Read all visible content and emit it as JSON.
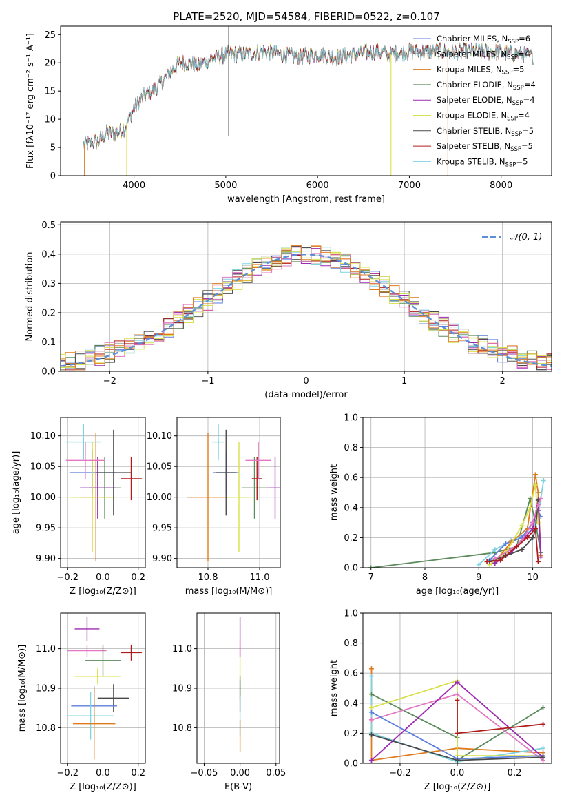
{
  "figure": {
    "title": "PLATE=2520, MJD=54584, FIBERID=0522, z=0.107"
  },
  "chart_data": [
    {
      "id": "spectrum",
      "type": "line",
      "xlabel": "wavelength [Angstrom, rest frame]",
      "ylabel": "Flux [fλ10⁻¹⁷ erg cm⁻² s⁻¹ A⁻¹]",
      "xlim": [
        3200,
        8550
      ],
      "ylim": [
        0,
        26.5
      ],
      "xticks": [
        4000,
        5000,
        6000,
        7000,
        8000
      ],
      "yticks": [
        0,
        5,
        10,
        15,
        20,
        25
      ],
      "grid": false,
      "legend_position": "top-right",
      "continuum": {
        "x": [
          3450,
          3600,
          3700,
          3800,
          3900,
          4000,
          4100,
          4200,
          4300,
          4400,
          4500,
          4600,
          4700,
          4800,
          4900,
          5000,
          5100,
          5200,
          5400,
          5600,
          5800,
          6000,
          6200,
          6400,
          6600,
          6800,
          7000,
          7200,
          7400,
          7600,
          7800,
          8000,
          8200,
          8350
        ],
        "y": [
          5.5,
          6.0,
          7.5,
          7.5,
          8.5,
          12.0,
          14.0,
          15.0,
          16.5,
          18.5,
          20.0,
          20.0,
          19.5,
          20.5,
          21.0,
          21.5,
          21.5,
          21.5,
          22.0,
          21.5,
          21.0,
          21.5,
          21.0,
          21.5,
          22.0,
          21.5,
          22.0,
          22.0,
          22.0,
          22.0,
          22.0,
          21.8,
          21.5,
          21.2
        ]
      },
      "series": [
        {
          "name": "Chabrier MILES, N_SSP=6",
          "color": "#5c7fdc"
        },
        {
          "name": "Salpeter MILES, N_SSP=4",
          "color": "#595959"
        },
        {
          "name": "Kroupa MILES, N_SSP=5",
          "color": "#e07a1f"
        },
        {
          "name": "Chabrier ELODIE, N_SSP=4",
          "color": "#5b8a5b"
        },
        {
          "name": "Salpeter ELODIE, N_SSP=4",
          "color": "#9b2bb0"
        },
        {
          "name": "Kroupa ELODIE, N_SSP=4",
          "color": "#d8e04a"
        },
        {
          "name": "Chabrier STELIB, N_SSP=5",
          "color": "#4a4a4a"
        },
        {
          "name": "Salpeter STELIB, N_SSP=5",
          "color": "#b01c1c"
        },
        {
          "name": "Kroupa STELIB, N_SSP=5",
          "color": "#7dd3e0"
        }
      ],
      "edge_drops": [
        {
          "color": "#e07a1f",
          "x": 3460
        },
        {
          "color": "#d8e04a",
          "x": 3920
        },
        {
          "color": "#d8e04a",
          "x": 6800
        },
        {
          "color": "#e07a1f",
          "x": 7420
        }
      ],
      "spike": {
        "x": 5030,
        "y_from": 7,
        "y_to": 26.5
      }
    },
    {
      "id": "residuals",
      "type": "line",
      "xlabel": "(data-model)/error",
      "ylabel": "Normed distribution",
      "xlim": [
        -2.5,
        2.5
      ],
      "ylim": [
        0,
        0.51
      ],
      "xticks": [
        -2,
        -1,
        0,
        1,
        2
      ],
      "yticks": [
        0.0,
        0.1,
        0.2,
        0.3,
        0.4,
        0.5
      ],
      "grid": true,
      "legend": "𝒩(0, 1)",
      "legend_position": "top-right",
      "bin_width": 0.1,
      "normal_curve_color": "#5b8fd6"
    },
    {
      "id": "age-vs-Z",
      "type": "scatter",
      "xlabel": "Z [log₁₀(Z/Z⊙)]",
      "ylabel": "age  [log₁₀(age/yr)]",
      "xlim": [
        -0.24,
        0.24
      ],
      "ylim": [
        9.885,
        10.13
      ],
      "xticks": [
        -0.2,
        0.0,
        0.2
      ],
      "yticks": [
        9.9,
        9.95,
        10.0,
        10.05,
        10.1
      ],
      "grid": true,
      "points": [
        {
          "color": "#5c7fdc",
          "x": -0.06,
          "xerr": 0.13,
          "y": 10.04,
          "yerr": 0.035
        },
        {
          "color": "#e07a1f",
          "x": -0.04,
          "xerr": 0.09,
          "y": 10.0,
          "yerr": 0.105
        },
        {
          "color": "#5b8a5b",
          "x": 0.01,
          "xerr": 0.09,
          "y": 10.015,
          "yerr": 0.05
        },
        {
          "color": "#9b2bb0",
          "x": -0.03,
          "xerr": 0.1,
          "y": 10.015,
          "yerr": 0.05
        },
        {
          "color": "#d8e04a",
          "x": -0.06,
          "xerr": 0.13,
          "y": 10.0,
          "yerr": 0.09
        },
        {
          "color": "#4a4a4a",
          "x": 0.06,
          "xerr": 0.1,
          "y": 10.04,
          "yerr": 0.07
        },
        {
          "color": "#b01c1c",
          "x": 0.16,
          "xerr": 0.06,
          "y": 10.03,
          "yerr": 0.035
        },
        {
          "color": "#e377c2",
          "x": -0.1,
          "xerr": 0.11,
          "y": 10.06,
          "yerr": 0.03
        },
        {
          "color": "#7dd3e0",
          "x": -0.11,
          "xerr": 0.1,
          "y": 10.09,
          "yerr": 0.03
        }
      ]
    },
    {
      "id": "age-vs-mass",
      "type": "scatter",
      "xlabel": "mass [log₁₀(M/M⊙)]",
      "ylabel": "",
      "xlim": [
        10.68,
        11.08
      ],
      "ylim": [
        9.885,
        10.13
      ],
      "xticks": [
        10.8,
        11.0
      ],
      "yticks": [
        9.9,
        9.95,
        10.0,
        10.05,
        10.1
      ],
      "grid": true,
      "points": [
        {
          "color": "#5c7fdc",
          "x": 10.87,
          "xerr": 0.05,
          "y": 10.04,
          "yerr": 0.035
        },
        {
          "color": "#e07a1f",
          "x": 10.8,
          "xerr": 0.08,
          "y": 10.0,
          "yerr": 0.105
        },
        {
          "color": "#5b8a5b",
          "x": 10.98,
          "xerr": 0.05,
          "y": 10.015,
          "yerr": 0.05
        },
        {
          "color": "#9b2bb0",
          "x": 11.06,
          "xerr": 0.03,
          "y": 10.015,
          "yerr": 0.05
        },
        {
          "color": "#d8e04a",
          "x": 10.92,
          "xerr": 0.05,
          "y": 10.0,
          "yerr": 0.09
        },
        {
          "color": "#4a4a4a",
          "x": 10.87,
          "xerr": 0.04,
          "y": 10.04,
          "yerr": 0.07
        },
        {
          "color": "#b01c1c",
          "x": 10.99,
          "xerr": 0.02,
          "y": 10.03,
          "yerr": 0.035
        },
        {
          "color": "#e377c2",
          "x": 10.995,
          "xerr": 0.05,
          "y": 10.06,
          "yerr": 0.03
        },
        {
          "color": "#7dd3e0",
          "x": 10.84,
          "xerr": 0.025,
          "y": 10.09,
          "yerr": 0.03
        }
      ]
    },
    {
      "id": "mass-weight-vs-age",
      "type": "line",
      "xlabel": "age  [log₁₀(age/yr)]",
      "ylabel": "mass weight",
      "xlim": [
        6.85,
        10.35
      ],
      "ylim": [
        0,
        1
      ],
      "xticks": [
        7,
        8,
        9,
        10
      ],
      "yticks": [
        0.0,
        0.2,
        0.4,
        0.6,
        0.8,
        1.0
      ],
      "grid": true,
      "series": [
        {
          "color": "#5b8a5b",
          "x": [
            7.0,
            9.3,
            9.7,
            9.95,
            10.05,
            10.15
          ],
          "y": [
            0.0,
            0.1,
            0.14,
            0.46,
            0.3,
            0.1
          ]
        },
        {
          "color": "#7dd3e0",
          "x": [
            9.0,
            9.3,
            9.6,
            10.0,
            10.1,
            10.2
          ],
          "y": [
            0.02,
            0.12,
            0.18,
            0.25,
            0.35,
            0.58
          ]
        },
        {
          "color": "#5c7fdc",
          "x": [
            9.2,
            9.5,
            9.8,
            10.0,
            10.1,
            10.15
          ],
          "y": [
            0.05,
            0.16,
            0.2,
            0.3,
            0.38,
            0.34
          ]
        },
        {
          "color": "#e07a1f",
          "x": [
            9.3,
            9.6,
            9.9,
            10.05,
            10.1,
            10.15
          ],
          "y": [
            0.04,
            0.17,
            0.26,
            0.62,
            0.5,
            0.08
          ]
        },
        {
          "color": "#d8e04a",
          "x": [
            9.2,
            9.5,
            9.8,
            9.95,
            10.05,
            10.1
          ],
          "y": [
            0.02,
            0.1,
            0.28,
            0.4,
            0.55,
            0.3
          ]
        },
        {
          "color": "#9b2bb0",
          "x": [
            9.3,
            9.6,
            9.85,
            10.0,
            10.1,
            10.15
          ],
          "y": [
            0.03,
            0.1,
            0.2,
            0.26,
            0.45,
            0.07
          ]
        },
        {
          "color": "#4a4a4a",
          "x": [
            9.2,
            9.5,
            9.8,
            10.0,
            10.05,
            10.1
          ],
          "y": [
            0.04,
            0.08,
            0.12,
            0.2,
            0.25,
            0.45
          ]
        },
        {
          "color": "#e377c2",
          "x": [
            9.3,
            9.6,
            9.8,
            10.0,
            10.1,
            10.15
          ],
          "y": [
            0.06,
            0.12,
            0.18,
            0.3,
            0.42,
            0.46
          ]
        },
        {
          "color": "#b01c1c",
          "x": [
            9.15,
            9.4,
            9.7,
            9.9,
            10.05,
            10.1
          ],
          "y": [
            0.04,
            0.05,
            0.14,
            0.2,
            0.26,
            0.04
          ]
        }
      ]
    },
    {
      "id": "mass-vs-Z",
      "type": "scatter",
      "xlabel": "Z [log₁₀(Z/Z⊙)]",
      "ylabel": "mass [log₁₀(M/M⊙)]",
      "xlim": [
        -0.24,
        0.24
      ],
      "ylim": [
        10.71,
        11.09
      ],
      "xticks": [
        -0.2,
        0.0,
        0.2
      ],
      "yticks": [
        10.8,
        10.9,
        11.0
      ],
      "grid": true,
      "points": [
        {
          "color": "#9b2bb0",
          "x": -0.09,
          "xerr": 0.07,
          "y": 11.05,
          "yerr": 0.03
        },
        {
          "color": "#e377c2",
          "x": -0.09,
          "xerr": 0.11,
          "y": 10.995,
          "yerr": 0.015
        },
        {
          "color": "#b01c1c",
          "x": 0.16,
          "xerr": 0.06,
          "y": 10.99,
          "yerr": 0.02
        },
        {
          "color": "#5b8a5b",
          "x": 0.0,
          "xerr": 0.1,
          "y": 10.97,
          "yerr": 0.04
        },
        {
          "color": "#d8e04a",
          "x": -0.03,
          "xerr": 0.13,
          "y": 10.93,
          "yerr": 0.02
        },
        {
          "color": "#4a4a4a",
          "x": 0.06,
          "xerr": 0.09,
          "y": 10.875,
          "yerr": 0.035
        },
        {
          "color": "#5c7fdc",
          "x": -0.05,
          "xerr": 0.13,
          "y": 10.855,
          "yerr": 0.05
        },
        {
          "color": "#7dd3e0",
          "x": -0.07,
          "xerr": 0.13,
          "y": 10.83,
          "yerr": 0.06
        },
        {
          "color": "#e07a1f",
          "x": -0.05,
          "xerr": 0.12,
          "y": 10.81,
          "yerr": 0.09
        }
      ]
    },
    {
      "id": "mass-vs-EBV",
      "type": "scatter",
      "xlabel": "E(B-V)",
      "ylabel": "",
      "xlim": [
        -0.06,
        0.055
      ],
      "ylim": [
        10.71,
        11.09
      ],
      "xticks": [
        -0.05,
        0.0,
        0.05
      ],
      "yticks": [
        10.8,
        10.9,
        11.0
      ],
      "grid": true,
      "points": [
        {
          "color": "#9b2bb0",
          "x": 0.0,
          "xerr": 0,
          "y": 11.03,
          "yerr": 0.05
        },
        {
          "color": "#e377c2",
          "x": 0.0,
          "xerr": 0,
          "y": 11.0,
          "yerr": 0.02
        },
        {
          "color": "#d8e04a",
          "x": 0.0,
          "xerr": 0,
          "y": 10.95,
          "yerr": 0.03
        },
        {
          "color": "#4a4a4a",
          "x": 0.0,
          "xerr": 0,
          "y": 10.88,
          "yerr": 0.04
        },
        {
          "color": "#5b8a5b",
          "x": 0.0,
          "xerr": 0,
          "y": 10.9,
          "yerr": 0.03
        },
        {
          "color": "#7dd3e0",
          "x": 0.0,
          "xerr": 0,
          "y": 10.83,
          "yerr": 0.05
        },
        {
          "color": "#e07a1f",
          "x": 0.0,
          "xerr": 0,
          "y": 10.78,
          "yerr": 0.04
        }
      ]
    },
    {
      "id": "mass-weight-vs-Z",
      "type": "line",
      "xlabel": "Z [log₁₀(Z/Z⊙)]",
      "ylabel": "mass weight",
      "xlim": [
        -0.33,
        0.33
      ],
      "ylim": [
        0,
        1
      ],
      "xticks": [
        -0.2,
        0.0,
        0.2
      ],
      "yticks": [
        0.0,
        0.2,
        0.4,
        0.6,
        0.8,
        1.0
      ],
      "grid": true,
      "series": [
        {
          "color": "#e07a1f",
          "x": [
            -0.3,
            -0.3,
            0.0,
            0.3
          ],
          "y": [
            0.63,
            0.02,
            0.1,
            0.07
          ]
        },
        {
          "color": "#7dd3e0",
          "x": [
            -0.3,
            -0.3,
            0.0,
            0.3
          ],
          "y": [
            0.58,
            0.2,
            0.01,
            0.1
          ]
        },
        {
          "color": "#5b8a5b",
          "x": [
            -0.3,
            0.0,
            0.0,
            0.3
          ],
          "y": [
            0.46,
            0.17,
            0.02,
            0.37
          ]
        },
        {
          "color": "#d8e04a",
          "x": [
            -0.3,
            0.0,
            0.0,
            0.3
          ],
          "y": [
            0.37,
            0.55,
            0.05,
            0.05
          ]
        },
        {
          "color": "#e377c2",
          "x": [
            -0.3,
            0.0,
            0.3
          ],
          "y": [
            0.29,
            0.46,
            0.02
          ]
        },
        {
          "color": "#5c7fdc",
          "x": [
            -0.3,
            0.0,
            0.3
          ],
          "y": [
            0.34,
            0.03,
            0.05
          ]
        },
        {
          "color": "#9b2bb0",
          "x": [
            -0.3,
            0.0,
            0.3
          ],
          "y": [
            0.02,
            0.54,
            0.04
          ]
        },
        {
          "color": "#4a4a4a",
          "x": [
            -0.3,
            0.0,
            0.3
          ],
          "y": [
            0.19,
            0.02,
            0.04
          ]
        },
        {
          "color": "#b01c1c",
          "x": [
            0.0,
            0.0,
            0.3
          ],
          "y": [
            0.42,
            0.2,
            0.26
          ]
        }
      ]
    }
  ]
}
